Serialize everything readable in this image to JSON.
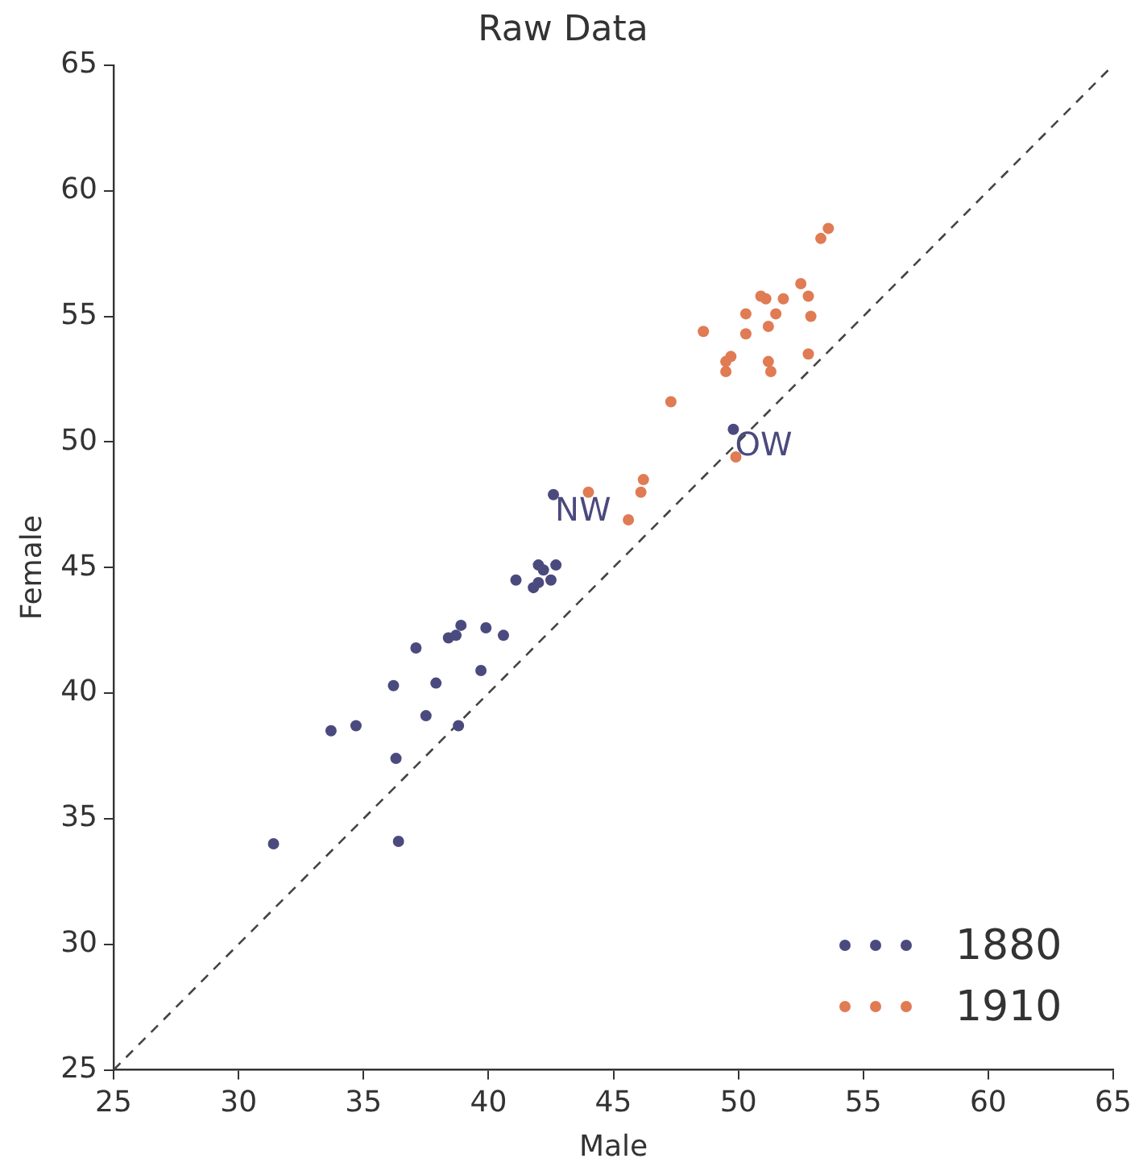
{
  "chart_data": {
    "type": "scatter",
    "title": "Raw Data",
    "xlabel": "Male",
    "ylabel": "Female",
    "xlim": [
      25,
      65
    ],
    "ylim": [
      25,
      65
    ],
    "xticks": [
      25,
      30,
      35,
      40,
      45,
      50,
      55,
      60,
      65
    ],
    "yticks": [
      25,
      30,
      35,
      40,
      45,
      50,
      55,
      60,
      65
    ],
    "grid": false,
    "legend": "bottom right",
    "marker": "circle",
    "annotations": [
      {
        "text": "NW",
        "x": 42.6,
        "y": 47.9
      },
      {
        "text": "OW",
        "x": 49.8,
        "y": 50.5
      }
    ],
    "series": [
      {
        "name": "1880",
        "color": "#4b4a7e",
        "x": [
          38.4,
          38.7,
          38.9,
          39.9,
          40.6,
          37.1,
          36.2,
          37.9,
          39.7,
          37.5,
          38.8,
          33.7,
          34.7,
          36.3,
          31.4,
          36.4,
          41.1,
          42.0,
          42.2,
          42.7,
          42.5,
          42.0,
          41.8,
          42.6,
          49.8
        ],
        "values": [
          42.2,
          42.3,
          42.7,
          42.6,
          42.3,
          41.8,
          40.3,
          40.4,
          40.9,
          39.1,
          38.7,
          38.5,
          38.7,
          37.4,
          34.0,
          34.1,
          44.5,
          45.1,
          44.9,
          45.1,
          44.5,
          44.4,
          44.2,
          47.9,
          50.5
        ]
      },
      {
        "name": "1910",
        "color": "#e07b54",
        "x": [
          53.6,
          53.3,
          52.5,
          52.8,
          50.9,
          51.1,
          51.8,
          50.3,
          51.5,
          52.9,
          48.6,
          50.3,
          51.2,
          52.8,
          49.7,
          49.5,
          49.5,
          51.2,
          51.3,
          47.3,
          49.9,
          46.2,
          46.1,
          44.0,
          45.6
        ],
        "values": [
          58.5,
          58.1,
          56.3,
          55.8,
          55.8,
          55.7,
          55.7,
          55.1,
          55.1,
          55.0,
          54.4,
          54.3,
          54.6,
          53.5,
          53.4,
          53.2,
          52.8,
          53.2,
          52.8,
          51.6,
          49.4,
          48.5,
          48.0,
          48.0,
          46.9
        ]
      },
      {
        "type": "line",
        "color": "#444444",
        "line_style": "dashed",
        "marker": "none",
        "x": [
          25,
          65
        ],
        "values": [
          25,
          65
        ]
      }
    ]
  }
}
